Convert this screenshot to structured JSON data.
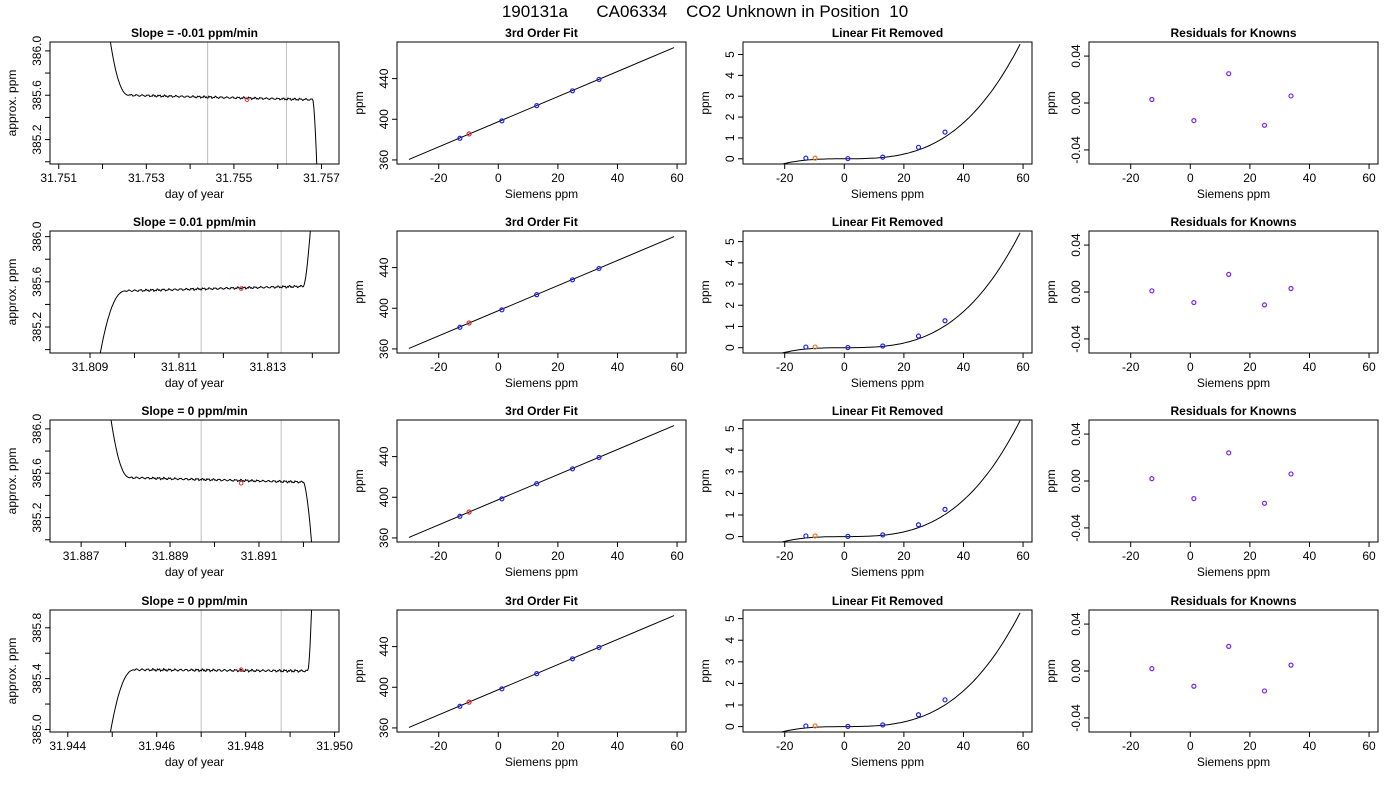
{
  "figure": {
    "title": "190131a      CA06334    CO2 Unknown in Position  10"
  },
  "colors": {
    "trace": "#000000",
    "known_point": "#2222ee",
    "unknown_fit": "#e03030",
    "unknown_resid": "#e07820",
    "resid_point": "#7a22ee",
    "window_line": "#c0c0c0"
  },
  "chart_data": [
    {
      "type": "line",
      "row": 1,
      "col": 1,
      "title": "Slope =  -0.01  ppm/min",
      "xlabel": "day of year",
      "ylabel": "approx. ppm",
      "xlim": [
        31.7508,
        31.7574
      ],
      "ylim": [
        384.98,
        386.08
      ],
      "xticks": [
        31.751,
        31.753,
        31.755,
        31.757
      ],
      "xtick_labels": [
        "31.751",
        "31.753",
        "31.755",
        "31.757"
      ],
      "yticks": [
        385.2,
        385.6,
        386.0
      ],
      "ytick_labels": [
        "385.2",
        "385.6",
        "386.0"
      ],
      "window": [
        31.7544,
        31.7562
      ],
      "unknown_point": {
        "x": 31.7553,
        "y": 385.56
      },
      "trace": {
        "shape": "down",
        "start": 31.7521,
        "settle": 31.7526,
        "exit": 31.7568,
        "end": 31.7569,
        "high": 386.3,
        "low": 384.9,
        "plateau_start": 385.6,
        "plateau_end": 385.56
      }
    },
    {
      "type": "scatter",
      "row": 1,
      "col": 2,
      "title": "3rd Order Fit",
      "xlabel": "Siemens ppm",
      "ylabel": "ppm",
      "xlim": [
        -34,
        63
      ],
      "ylim": [
        356,
        476
      ],
      "xticks": [
        -20,
        0,
        20,
        40,
        60
      ],
      "xtick_labels": [
        "-20",
        "0",
        "20",
        "40",
        "60"
      ],
      "yticks": [
        360,
        400,
        440
      ],
      "ytick_labels": [
        "360",
        "400",
        "440"
      ],
      "fit_line": {
        "x": [
          -30,
          59
        ],
        "y": [
          360.5,
          470.5
        ]
      },
      "knowns": {
        "x": [
          -12.9,
          1.2,
          12.9,
          24.9,
          33.8
        ],
        "y": [
          381.3,
          398.5,
          413.4,
          428.0,
          439.2
        ]
      },
      "unknown": {
        "x": [
          -9.8
        ],
        "y": [
          385.6
        ]
      }
    },
    {
      "type": "scatter",
      "row": 1,
      "col": 3,
      "title": "Linear Fit Removed",
      "xlabel": "Siemens ppm",
      "ylabel": "ppm",
      "xlim": [
        -34,
        63
      ],
      "ylim": [
        -0.25,
        5.6
      ],
      "xticks": [
        -20,
        0,
        20,
        40,
        60
      ],
      "xtick_labels": [
        "-20",
        "0",
        "20",
        "40",
        "60"
      ],
      "yticks": [
        0,
        1,
        2,
        3,
        4,
        5
      ],
      "ytick_labels": [
        "0",
        "1",
        "2",
        "3",
        "4",
        "5"
      ],
      "curve_coeffs": [
        0.0,
        0.0006,
        0.0,
        2.66e-05
      ],
      "curve_range": [
        -30,
        59
      ],
      "knowns": {
        "x": [
          -12.9,
          1.2,
          12.9,
          24.9,
          33.8
        ],
        "y": [
          0.03,
          0.01,
          0.08,
          0.55,
          1.28
        ]
      },
      "unknown": {
        "x": [
          -9.8
        ],
        "y": [
          0.03
        ]
      }
    },
    {
      "type": "scatter",
      "row": 1,
      "col": 4,
      "title": "Residuals for Knowns",
      "xlabel": "Siemens ppm",
      "ylabel": "ppm",
      "xlim": [
        -34,
        63
      ],
      "ylim": [
        -0.052,
        0.052
      ],
      "xticks": [
        -20,
        0,
        20,
        40,
        60
      ],
      "xtick_labels": [
        "-20",
        "0",
        "20",
        "40",
        "60"
      ],
      "yticks": [
        -0.04,
        0.0,
        0.04
      ],
      "ytick_labels": [
        "-0.04",
        "0.00",
        "0.04"
      ],
      "knowns": {
        "x": [
          -12.9,
          1.2,
          12.9,
          24.9,
          33.8
        ],
        "y": [
          0.003,
          -0.015,
          0.025,
          -0.019,
          0.006
        ]
      }
    },
    {
      "type": "line",
      "row": 2,
      "col": 1,
      "title": "Slope =  0.01  ppm/min",
      "xlabel": "day of year",
      "ylabel": "approx. ppm",
      "xlim": [
        31.8081,
        31.8146
      ],
      "ylim": [
        384.97,
        386.05
      ],
      "xticks": [
        31.809,
        31.811,
        31.813
      ],
      "xtick_labels": [
        "31.809",
        "31.811",
        "31.813"
      ],
      "yticks": [
        385.2,
        385.6,
        386.0
      ],
      "ytick_labels": [
        "385.2",
        "385.6",
        "386.0"
      ],
      "window": [
        31.8115,
        31.8133
      ],
      "unknown_point": {
        "x": 31.8124,
        "y": 385.54
      },
      "trace": {
        "shape": "up",
        "start": 31.8092,
        "settle": 31.8098,
        "exit": 31.8138,
        "end": 31.814,
        "high": 386.3,
        "low": 384.9,
        "plateau_start": 385.52,
        "plateau_end": 385.56
      }
    },
    {
      "type": "scatter",
      "row": 2,
      "col": 2,
      "title": "3rd Order Fit",
      "xlabel": "Siemens ppm",
      "ylabel": "ppm",
      "xlim": [
        -34,
        63
      ],
      "ylim": [
        356,
        476
      ],
      "xticks": [
        -20,
        0,
        20,
        40,
        60
      ],
      "xtick_labels": [
        "-20",
        "0",
        "20",
        "40",
        "60"
      ],
      "yticks": [
        360,
        400,
        440
      ],
      "ytick_labels": [
        "360",
        "400",
        "440"
      ],
      "fit_line": {
        "x": [
          -30,
          59
        ],
        "y": [
          360.5,
          470.5
        ]
      },
      "knowns": {
        "x": [
          -12.9,
          1.2,
          12.9,
          24.9,
          33.8
        ],
        "y": [
          381.3,
          398.5,
          413.4,
          428.0,
          439.2
        ]
      },
      "unknown": {
        "x": [
          -9.8
        ],
        "y": [
          385.5
        ]
      }
    },
    {
      "type": "scatter",
      "row": 2,
      "col": 3,
      "title": "Linear Fit Removed",
      "xlabel": "Siemens ppm",
      "ylabel": "ppm",
      "xlim": [
        -34,
        63
      ],
      "ylim": [
        -0.25,
        5.5
      ],
      "xticks": [
        -20,
        0,
        20,
        40,
        60
      ],
      "xtick_labels": [
        "-20",
        "0",
        "20",
        "40",
        "60"
      ],
      "yticks": [
        0,
        1,
        2,
        3,
        4,
        5
      ],
      "ytick_labels": [
        "0",
        "1",
        "2",
        "3",
        "4",
        "5"
      ],
      "curve_coeffs": [
        0.0,
        0.0006,
        0.0,
        2.62e-05
      ],
      "curve_range": [
        -30,
        59
      ],
      "knowns": {
        "x": [
          -12.9,
          1.2,
          12.9,
          24.9,
          33.8
        ],
        "y": [
          0.03,
          0.01,
          0.08,
          0.55,
          1.27
        ]
      },
      "unknown": {
        "x": [
          -9.8
        ],
        "y": [
          0.03
        ]
      }
    },
    {
      "type": "scatter",
      "row": 2,
      "col": 4,
      "title": "Residuals for Knowns",
      "xlabel": "Siemens ppm",
      "ylabel": "ppm",
      "xlim": [
        -34,
        63
      ],
      "ylim": [
        -0.052,
        0.052
      ],
      "xticks": [
        -20,
        0,
        20,
        40,
        60
      ],
      "xtick_labels": [
        "-20",
        "0",
        "20",
        "40",
        "60"
      ],
      "yticks": [
        -0.04,
        0.0,
        0.04
      ],
      "ytick_labels": [
        "-0.04",
        "0.00",
        "0.04"
      ],
      "knowns": {
        "x": [
          -12.9,
          1.2,
          12.9,
          24.9,
          33.8
        ],
        "y": [
          0.001,
          -0.009,
          0.015,
          -0.011,
          0.003
        ]
      }
    },
    {
      "type": "line",
      "row": 3,
      "col": 1,
      "title": "Slope =  0  ppm/min",
      "xlabel": "day of year",
      "ylabel": "approx. ppm",
      "xlim": [
        31.8863,
        31.8928
      ],
      "ylim": [
        384.98,
        386.08
      ],
      "xticks": [
        31.887,
        31.889,
        31.891
      ],
      "xtick_labels": [
        "31.887",
        "31.889",
        "31.891"
      ],
      "yticks": [
        385.2,
        385.6,
        386.0
      ],
      "ytick_labels": [
        "385.2",
        "385.6",
        "386.0"
      ],
      "window": [
        31.8897,
        31.8915
      ],
      "unknown_point": {
        "x": 31.8906,
        "y": 385.51
      },
      "trace": {
        "shape": "down",
        "start": 31.8876,
        "settle": 31.8881,
        "exit": 31.892,
        "end": 31.8922,
        "high": 386.3,
        "low": 384.9,
        "plateau_start": 385.56,
        "plateau_end": 385.52
      }
    },
    {
      "type": "scatter",
      "row": 3,
      "col": 2,
      "title": "3rd Order Fit",
      "xlabel": "Siemens ppm",
      "ylabel": "ppm",
      "xlim": [
        -34,
        63
      ],
      "ylim": [
        356,
        476
      ],
      "xticks": [
        -20,
        0,
        20,
        40,
        60
      ],
      "xtick_labels": [
        "-20",
        "0",
        "20",
        "40",
        "60"
      ],
      "yticks": [
        360,
        400,
        440
      ],
      "ytick_labels": [
        "360",
        "400",
        "440"
      ],
      "fit_line": {
        "x": [
          -30,
          59
        ],
        "y": [
          360.5,
          470.5
        ]
      },
      "knowns": {
        "x": [
          -12.9,
          1.2,
          12.9,
          24.9,
          33.8
        ],
        "y": [
          381.3,
          398.5,
          413.4,
          428.0,
          439.2
        ]
      },
      "unknown": {
        "x": [
          -9.8
        ],
        "y": [
          385.5
        ]
      }
    },
    {
      "type": "scatter",
      "row": 3,
      "col": 3,
      "title": "Linear Fit Removed",
      "xlabel": "Siemens ppm",
      "ylabel": "ppm",
      "xlim": [
        -34,
        63
      ],
      "ylim": [
        -0.25,
        5.4
      ],
      "xticks": [
        -20,
        0,
        20,
        40,
        60
      ],
      "xtick_labels": [
        "-20",
        "0",
        "20",
        "40",
        "60"
      ],
      "yticks": [
        0,
        1,
        2,
        3,
        4,
        5
      ],
      "ytick_labels": [
        "0",
        "1",
        "2",
        "3",
        "4",
        "5"
      ],
      "curve_coeffs": [
        0.0,
        0.0006,
        0.0,
        2.6e-05
      ],
      "curve_range": [
        -30,
        59
      ],
      "knowns": {
        "x": [
          -12.9,
          1.2,
          12.9,
          24.9,
          33.8
        ],
        "y": [
          0.03,
          0.01,
          0.08,
          0.55,
          1.26
        ]
      },
      "unknown": {
        "x": [
          -9.8
        ],
        "y": [
          0.03
        ]
      }
    },
    {
      "type": "scatter",
      "row": 3,
      "col": 4,
      "title": "Residuals for Knowns",
      "xlabel": "Siemens ppm",
      "ylabel": "ppm",
      "xlim": [
        -34,
        63
      ],
      "ylim": [
        -0.052,
        0.052
      ],
      "xticks": [
        -20,
        0,
        20,
        40,
        60
      ],
      "xtick_labels": [
        "-20",
        "0",
        "20",
        "40",
        "60"
      ],
      "yticks": [
        -0.04,
        0.0,
        0.04
      ],
      "ytick_labels": [
        "-0.04",
        "0.00",
        "0.04"
      ],
      "knowns": {
        "x": [
          -12.9,
          1.2,
          12.9,
          24.9,
          33.8
        ],
        "y": [
          0.002,
          -0.015,
          0.024,
          -0.019,
          0.006
        ]
      }
    },
    {
      "type": "line",
      "row": 4,
      "col": 1,
      "title": "Slope =  0  ppm/min",
      "xlabel": "day of year",
      "ylabel": "approx. ppm",
      "xlim": [
        31.9436,
        31.9501
      ],
      "ylim": [
        384.98,
        385.94
      ],
      "xticks": [
        31.944,
        31.946,
        31.948,
        31.95
      ],
      "xtick_labels": [
        "31.944",
        "31.946",
        "31.948",
        "31.950"
      ],
      "yticks": [
        385.0,
        385.4,
        385.8
      ],
      "ytick_labels": [
        "385.0",
        "385.4",
        "385.8"
      ],
      "window": [
        31.947,
        31.9488
      ],
      "unknown_point": {
        "x": 31.9479,
        "y": 385.47
      },
      "trace": {
        "shape": "up",
        "start": 31.9449,
        "settle": 31.9455,
        "exit": 31.9494,
        "end": 31.9495,
        "high": 386.1,
        "low": 384.85,
        "plateau_start": 385.47,
        "plateau_end": 385.46
      }
    },
    {
      "type": "scatter",
      "row": 4,
      "col": 2,
      "title": "3rd Order Fit",
      "xlabel": "Siemens ppm",
      "ylabel": "ppm",
      "xlim": [
        -34,
        63
      ],
      "ylim": [
        356,
        476
      ],
      "xticks": [
        -20,
        0,
        20,
        40,
        60
      ],
      "xtick_labels": [
        "-20",
        "0",
        "20",
        "40",
        "60"
      ],
      "yticks": [
        360,
        400,
        440
      ],
      "ytick_labels": [
        "360",
        "400",
        "440"
      ],
      "fit_line": {
        "x": [
          -30,
          59
        ],
        "y": [
          360.5,
          470.5
        ]
      },
      "knowns": {
        "x": [
          -12.9,
          1.2,
          12.9,
          24.9,
          33.8
        ],
        "y": [
          381.3,
          398.5,
          413.4,
          428.0,
          439.2
        ]
      },
      "unknown": {
        "x": [
          -9.8
        ],
        "y": [
          385.4
        ]
      }
    },
    {
      "type": "scatter",
      "row": 4,
      "col": 3,
      "title": "Linear Fit Removed",
      "xlabel": "Siemens ppm",
      "ylabel": "ppm",
      "xlim": [
        -34,
        63
      ],
      "ylim": [
        -0.25,
        5.4
      ],
      "xticks": [
        -20,
        0,
        20,
        40,
        60
      ],
      "xtick_labels": [
        "-20",
        "0",
        "20",
        "40",
        "60"
      ],
      "yticks": [
        0,
        1,
        2,
        3,
        4,
        5
      ],
      "ytick_labels": [
        "0",
        "1",
        "2",
        "3",
        "4",
        "5"
      ],
      "curve_coeffs": [
        0.0,
        0.0006,
        0.0,
        2.55e-05
      ],
      "curve_range": [
        -30,
        59
      ],
      "knowns": {
        "x": [
          -12.9,
          1.2,
          12.9,
          24.9,
          33.8
        ],
        "y": [
          0.03,
          0.01,
          0.08,
          0.55,
          1.24
        ]
      },
      "unknown": {
        "x": [
          -9.8
        ],
        "y": [
          0.03
        ]
      }
    },
    {
      "type": "scatter",
      "row": 4,
      "col": 4,
      "title": "Residuals for Knowns",
      "xlabel": "Siemens ppm",
      "ylabel": "ppm",
      "xlim": [
        -34,
        63
      ],
      "ylim": [
        -0.052,
        0.052
      ],
      "xticks": [
        -20,
        0,
        20,
        40,
        60
      ],
      "xtick_labels": [
        "-20",
        "0",
        "20",
        "40",
        "60"
      ],
      "yticks": [
        -0.04,
        0.0,
        0.04
      ],
      "ytick_labels": [
        "-0.04",
        "0.00",
        "0.04"
      ],
      "knowns": {
        "x": [
          -12.9,
          1.2,
          12.9,
          24.9,
          33.8
        ],
        "y": [
          0.002,
          -0.013,
          0.021,
          -0.017,
          0.005
        ]
      }
    }
  ]
}
